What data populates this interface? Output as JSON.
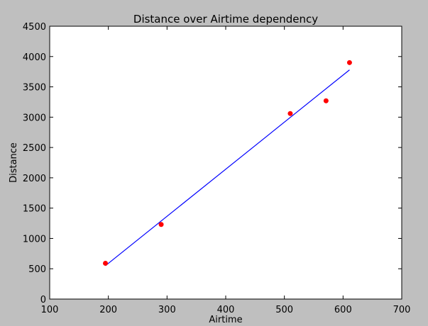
{
  "chart_data": {
    "type": "scatter",
    "title": "Distance over Airtime dependency",
    "xlabel": "Airtime",
    "ylabel": "Distance",
    "xlim": [
      100,
      700
    ],
    "ylim": [
      0,
      4500
    ],
    "xticks": [
      100,
      200,
      300,
      400,
      500,
      600,
      700
    ],
    "yticks": [
      0,
      500,
      1000,
      1500,
      2000,
      2500,
      3000,
      3500,
      4000,
      4500
    ],
    "grid": false,
    "series": [
      {
        "kind": "scatter",
        "color": "#ff0000",
        "points": [
          {
            "x": 195,
            "y": 590
          },
          {
            "x": 290,
            "y": 1230
          },
          {
            "x": 510,
            "y": 3060
          },
          {
            "x": 571,
            "y": 3270
          },
          {
            "x": 611,
            "y": 3900
          }
        ]
      },
      {
        "kind": "line",
        "color": "#0000ff",
        "points": [
          {
            "x": 195,
            "y": 550
          },
          {
            "x": 611,
            "y": 3780
          }
        ]
      }
    ]
  }
}
